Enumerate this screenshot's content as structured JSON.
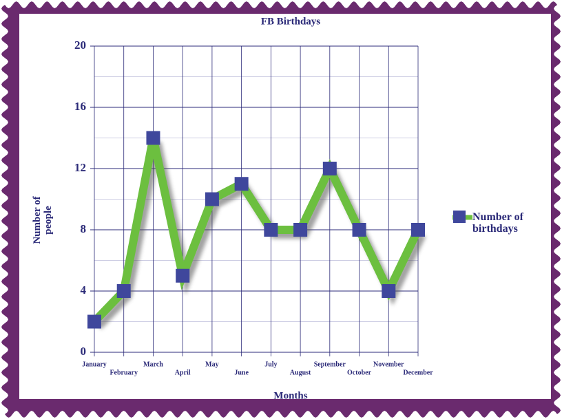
{
  "chart_data": {
    "type": "line",
    "title": "FB Birthdays",
    "x_label": "Months",
    "y_label": "Number of people",
    "categories": [
      "January",
      "February",
      "March",
      "April",
      "May",
      "June",
      "July",
      "August",
      "September",
      "October",
      "November",
      "December"
    ],
    "series": [
      {
        "name": "Number of birthdays",
        "color": "#6cbf3f",
        "marker_color": "#3f479c",
        "values": [
          2,
          4,
          14,
          5,
          10,
          11,
          8,
          8,
          12,
          8,
          4,
          8
        ]
      }
    ],
    "ylim": [
      0,
      20
    ],
    "yticks": [
      0,
      4,
      8,
      12,
      16,
      20
    ],
    "grid": true,
    "legend": "right"
  }
}
